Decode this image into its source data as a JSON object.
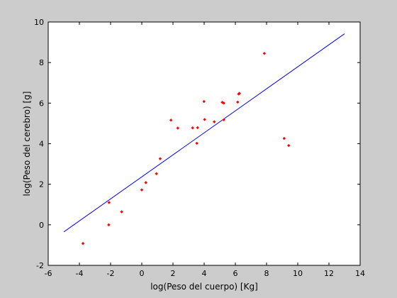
{
  "chart_data": {
    "type": "scatter",
    "xlabel": "log(Peso del cuerpo) [Kg]",
    "ylabel": "log(Peso del cerebro) [g]",
    "xlim": [
      -6,
      14
    ],
    "ylim": [
      -2,
      10
    ],
    "xticks": [
      "-6",
      "-4",
      "-2",
      "0",
      "2",
      "4",
      "6",
      "8",
      "10",
      "12",
      "14"
    ],
    "yticks": [
      "-2",
      "0",
      "2",
      "4",
      "6",
      "8",
      "10"
    ],
    "grid": false,
    "colors": {
      "points": "#ff0000",
      "fit_line": "#0000ff",
      "background": "#cccccc",
      "axes": "#ffffff"
    },
    "points": {
      "x": [
        -3.77,
        -2.12,
        -2.1,
        -1.29,
        0.0,
        0.26,
        0.94,
        1.18,
        1.87,
        2.31,
        3.26,
        3.53,
        3.58,
        3.99,
        4.03,
        4.65,
        5.16,
        5.26,
        5.26,
        6.15,
        6.21,
        6.26,
        7.86,
        9.13,
        9.42
      ],
      "y": [
        -0.92,
        0.0,
        1.1,
        0.64,
        1.72,
        2.08,
        2.52,
        3.26,
        5.16,
        4.77,
        4.78,
        4.02,
        4.79,
        6.08,
        5.19,
        5.08,
        6.04,
        5.18,
        6.0,
        6.05,
        6.45,
        6.48,
        8.45,
        4.26,
        3.91
      ]
    },
    "fit_line": {
      "x": [
        -5,
        13
      ],
      "y": [
        -0.35,
        9.42
      ]
    }
  }
}
